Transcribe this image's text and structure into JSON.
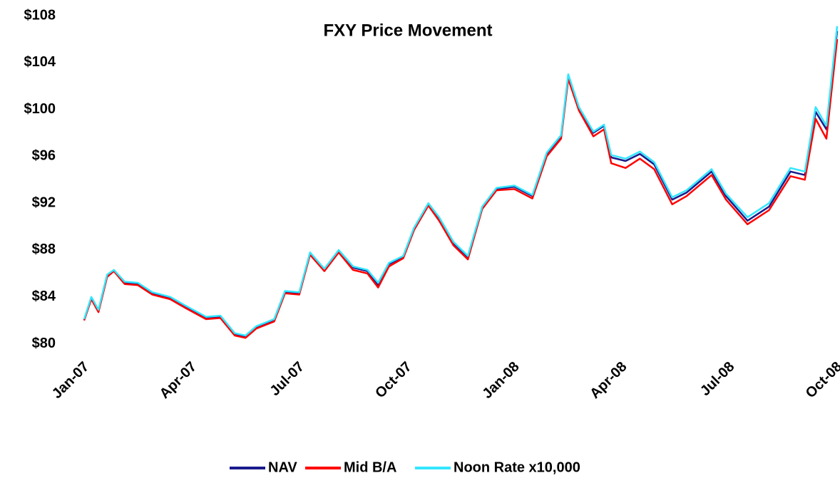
{
  "chart_data": {
    "type": "line",
    "title": "FXY Price Movement",
    "x": [
      0,
      0.2,
      0.4,
      0.64,
      0.83,
      1.13,
      1.5,
      1.9,
      2.4,
      2.8,
      3.4,
      3.8,
      4.2,
      4.5,
      4.8,
      5.3,
      5.6,
      6.0,
      6.3,
      6.7,
      7.1,
      7.5,
      7.9,
      8.2,
      8.5,
      8.9,
      9.2,
      9.6,
      9.9,
      10.3,
      10.7,
      11.1,
      11.5,
      12.0,
      12.5,
      12.9,
      13.3,
      13.5,
      13.8,
      14.2,
      14.5,
      14.7,
      15.1,
      15.5,
      15.9,
      16.4,
      16.8,
      17.5,
      17.9,
      18.5,
      19.1,
      19.7,
      20.1,
      20.4,
      20.7,
      21.0
    ],
    "series": [
      {
        "name": "NAV",
        "color": "#1a1a8c",
        "values": [
          82.0,
          83.9,
          82.8,
          85.8,
          86.2,
          85.2,
          85.1,
          84.3,
          83.9,
          83.2,
          82.2,
          82.3,
          80.8,
          80.6,
          81.4,
          82.0,
          84.4,
          84.3,
          87.7,
          86.3,
          87.9,
          86.5,
          86.2,
          85.0,
          86.8,
          87.4,
          89.8,
          91.9,
          90.7,
          88.6,
          87.4,
          91.6,
          93.2,
          93.4,
          92.6,
          96.2,
          97.7,
          102.8,
          100.1,
          98.0,
          98.6,
          95.9,
          95.6,
          96.2,
          95.3,
          92.3,
          92.9,
          94.7,
          92.6,
          90.5,
          91.7,
          94.7,
          94.4,
          99.8,
          98.3,
          106.7
        ]
      },
      {
        "name": "Mid B/A",
        "color": "#ff0000",
        "values": [
          82.0,
          83.8,
          82.7,
          85.7,
          86.2,
          85.1,
          85.0,
          84.2,
          83.8,
          83.1,
          82.1,
          82.2,
          80.7,
          80.5,
          81.3,
          81.9,
          84.3,
          84.2,
          87.6,
          86.2,
          87.8,
          86.3,
          86.0,
          84.8,
          86.6,
          87.3,
          89.7,
          91.8,
          90.5,
          88.4,
          87.2,
          91.5,
          93.1,
          93.2,
          92.4,
          96.0,
          97.5,
          102.6,
          99.9,
          97.7,
          98.3,
          95.4,
          95.0,
          95.8,
          94.9,
          91.9,
          92.6,
          94.4,
          92.3,
          90.2,
          91.4,
          94.3,
          94.0,
          99.2,
          97.5,
          106.0
        ]
      },
      {
        "name": "Noon Rate x10,000",
        "color": "#33e6ff",
        "values": [
          82.1,
          84.0,
          82.9,
          85.9,
          86.3,
          85.3,
          85.2,
          84.4,
          84.0,
          83.3,
          82.3,
          82.4,
          80.9,
          80.7,
          81.5,
          82.1,
          84.5,
          84.4,
          87.8,
          86.4,
          88.0,
          86.6,
          86.3,
          85.2,
          86.9,
          87.5,
          89.9,
          92.0,
          90.8,
          88.7,
          87.5,
          91.7,
          93.3,
          93.5,
          92.7,
          96.3,
          97.8,
          103.0,
          100.2,
          98.1,
          98.7,
          96.1,
          95.8,
          96.4,
          95.5,
          92.5,
          93.1,
          94.9,
          92.8,
          90.8,
          92.0,
          95.0,
          94.7,
          100.2,
          98.6,
          107.1
        ]
      }
    ],
    "xlim": [
      0,
      21
    ],
    "xticks": [
      {
        "value": 0,
        "label": "Jan-07"
      },
      {
        "value": 3,
        "label": "Apr-07"
      },
      {
        "value": 6,
        "label": "Jul-07"
      },
      {
        "value": 9,
        "label": "Oct-07"
      },
      {
        "value": 12,
        "label": "Jan-08"
      },
      {
        "value": 15,
        "label": "Apr-08"
      },
      {
        "value": 18,
        "label": "Jul-08"
      },
      {
        "value": 21,
        "label": "Oct-08"
      }
    ],
    "ylim": [
      79,
      108
    ],
    "yticks": [
      {
        "value": 80,
        "label": "$80"
      },
      {
        "value": 84,
        "label": "$84"
      },
      {
        "value": 88,
        "label": "$88"
      },
      {
        "value": 92,
        "label": "$92"
      },
      {
        "value": 96,
        "label": "$96"
      },
      {
        "value": 100,
        "label": "$100"
      },
      {
        "value": 104,
        "label": "$104"
      },
      {
        "value": 108,
        "label": "$108"
      }
    ],
    "grid": false
  }
}
